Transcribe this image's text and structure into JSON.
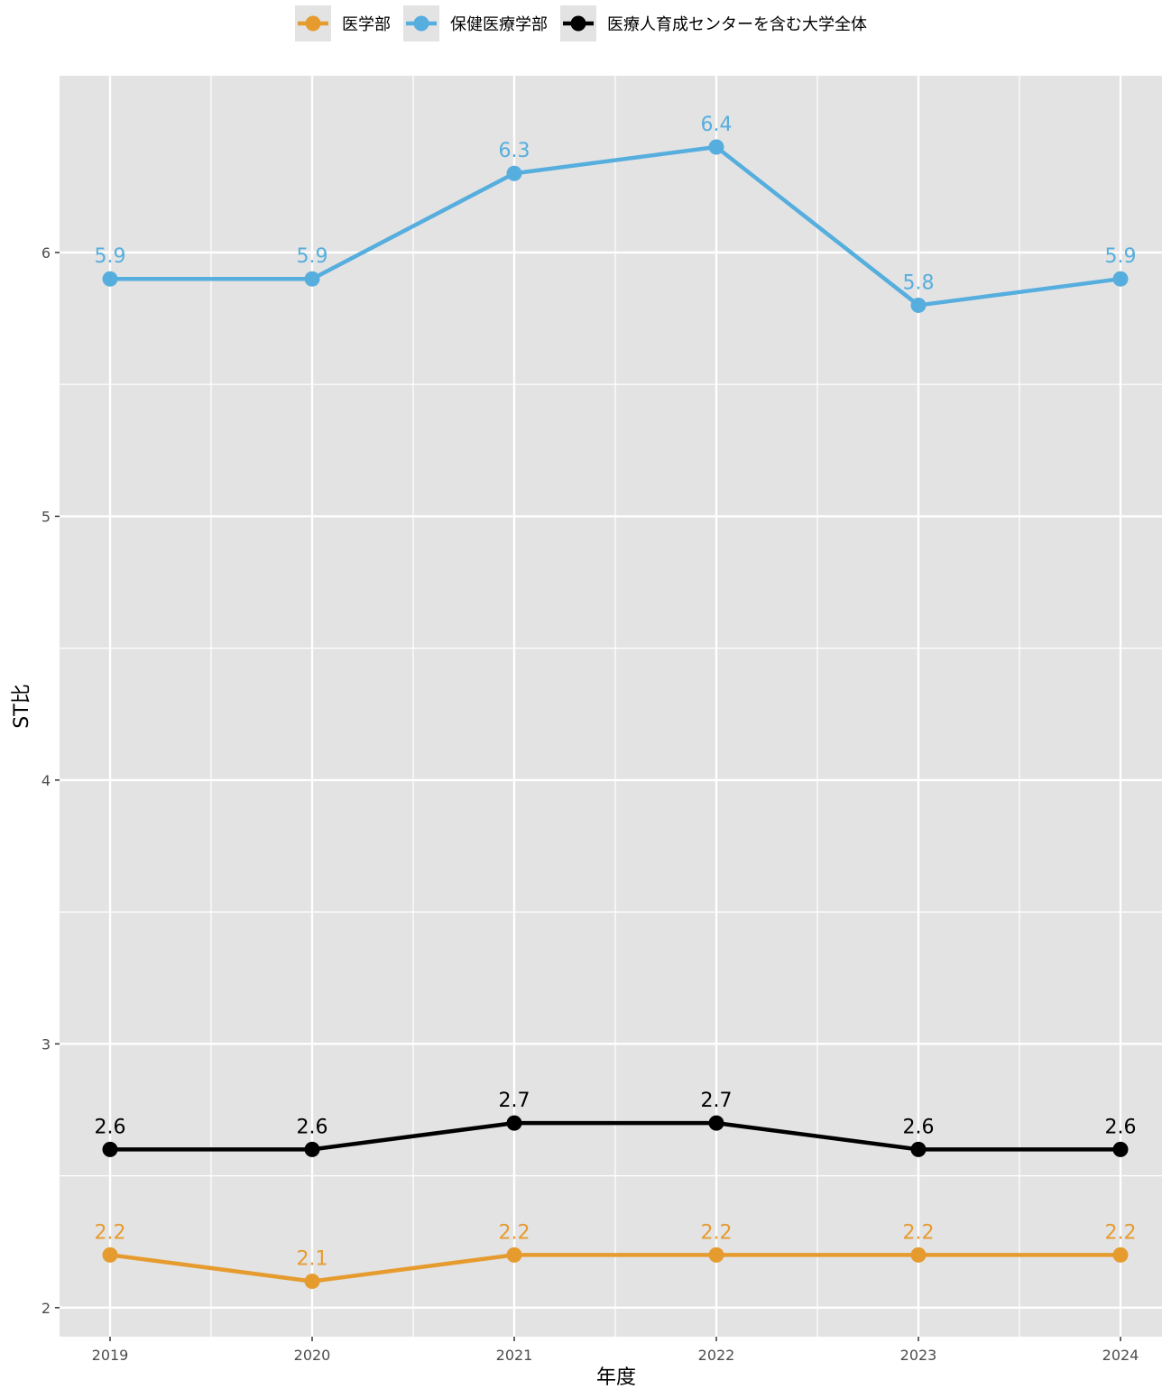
{
  "chart_data": {
    "type": "line",
    "x": [
      "2019",
      "2020",
      "2021",
      "2022",
      "2023",
      "2024"
    ],
    "xlabel": "年度",
    "ylabel": "ST比",
    "ylim": [
      1.89,
      6.67
    ],
    "yticks": [
      2,
      3,
      4,
      5,
      6
    ],
    "grid": true,
    "legend_position": "top",
    "series": [
      {
        "name": "医学部",
        "color": "#e69b2f",
        "values": [
          2.2,
          2.1,
          2.2,
          2.2,
          2.2,
          2.2
        ],
        "labels": [
          "2.2",
          "2.1",
          "2.2",
          "2.2",
          "2.2",
          "2.2"
        ]
      },
      {
        "name": "保健医療学部",
        "color": "#56aede",
        "values": [
          5.9,
          5.9,
          6.3,
          6.4,
          5.8,
          5.9
        ],
        "labels": [
          "5.9",
          "5.9",
          "6.3",
          "6.4",
          "5.8",
          "5.9"
        ]
      },
      {
        "name": "医療人育成センターを含む大学全体",
        "color": "#000000",
        "values": [
          2.6,
          2.6,
          2.7,
          2.7,
          2.6,
          2.6
        ],
        "labels": [
          "2.6",
          "2.6",
          "2.7",
          "2.7",
          "2.6",
          "2.6"
        ]
      }
    ],
    "panel_color": "#e3e3e3",
    "grid_color": "#ffffff"
  }
}
